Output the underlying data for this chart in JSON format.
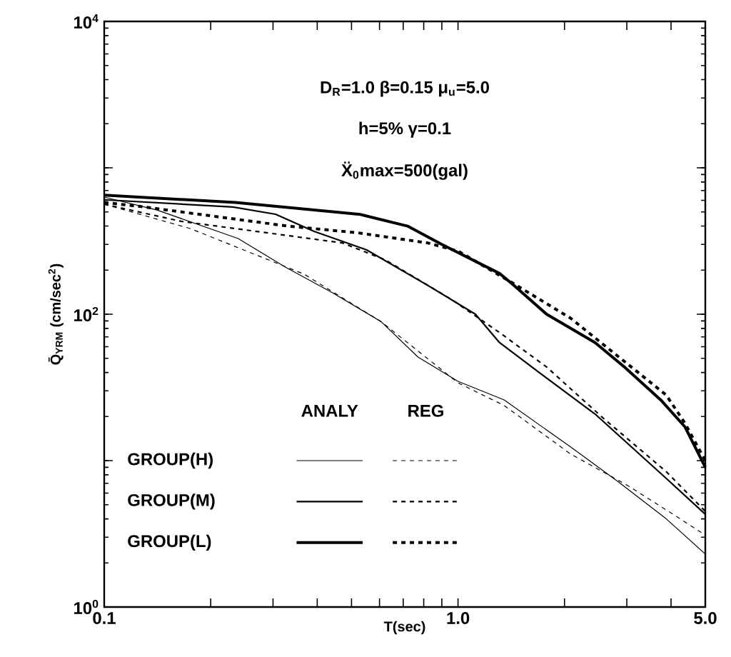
{
  "chart_data": {
    "type": "line",
    "log": "xy",
    "legend": "bottom left",
    "xlabel": "T(sec)",
    "ylabel": "Q̄$_{YRM}$ (cm/sec$^{2}$)",
    "annotations": [
      "D$_{R}$=1.0  β=0.15  μ$_{u}$=5.0",
      "h=5%  γ=0.1",
      "Ẍ$_{0}$max=500(gal)",
      "ANALY",
      "REG"
    ],
    "xlim": [
      0.1,
      5.0
    ],
    "ylim": [
      1,
      10000
    ],
    "xticks": [
      {
        "value": 0.1,
        "label": "0.1"
      },
      {
        "value": 0.2,
        "label": null
      },
      {
        "value": 0.3,
        "label": null
      },
      {
        "value": 0.4,
        "label": null
      },
      {
        "value": 0.5,
        "label": null
      },
      {
        "value": 0.6,
        "label": null
      },
      {
        "value": 0.7,
        "label": null
      },
      {
        "value": 0.8,
        "label": null
      },
      {
        "value": 0.9,
        "label": null
      },
      {
        "value": 1,
        "label": "1.0"
      },
      {
        "value": 2,
        "label": null
      },
      {
        "value": 3,
        "label": null
      },
      {
        "value": 4,
        "label": null
      },
      {
        "value": 5,
        "label": "5.0"
      }
    ],
    "yticks": [
      {
        "value": 1,
        "label": "10$^{0}$"
      },
      {
        "value": 10,
        "label": null
      },
      {
        "value": 100,
        "label": "10$^{2}$"
      },
      {
        "value": 1000,
        "label": null
      },
      {
        "value": 10000,
        "label": "10$^{4}$"
      }
    ],
    "series": [
      {
        "name": "GROUP(H)",
        "color": "#000000",
        "line_style": "solid",
        "x": [
          0.1,
          0.141,
          0.239,
          0.325,
          0.442,
          0.606,
          0.771,
          1.0,
          1.35,
          2.08,
          2.83,
          3.88,
          5.0
        ],
        "values": [
          631,
          515,
          329,
          210,
          140,
          89,
          51,
          34.8,
          26,
          12.4,
          7.2,
          4.0,
          2.3
        ]
      },
      {
        "color": "#000000",
        "line_style": "dashed",
        "x": [
          0.1,
          0.175,
          0.367,
          0.606,
          1.0,
          1.35,
          2.08,
          3.02,
          3.88,
          5.0
        ],
        "values": [
          564,
          385,
          188,
          89,
          34,
          23.8,
          11.1,
          6.75,
          4.6,
          3.1
        ]
      },
      {
        "name": "GROUP(M)",
        "color": "#000000",
        "line_style": "solid",
        "x": [
          0.1,
          0.231,
          0.305,
          0.392,
          0.552,
          0.823,
          1.12,
          1.31,
          1.68,
          2.44,
          3.88,
          5.0
        ],
        "values": [
          605,
          540,
          482,
          368,
          275,
          157,
          100,
          64,
          40.7,
          20.8,
          7.55,
          4.3
        ]
      },
      {
        "color": "#000000",
        "line_style": "dashed",
        "x": [
          0.1,
          0.165,
          0.471,
          0.623,
          0.964,
          1.31,
          1.78,
          2.58,
          3.88,
          5.0
        ],
        "values": [
          564,
          431,
          307,
          235,
          125,
          75,
          43.6,
          19.4,
          8.4,
          4.5
        ]
      },
      {
        "name": "GROUP(L)",
        "color": "#000000",
        "line_style": "solid",
        "x": [
          0.1,
          0.235,
          0.53,
          0.72,
          0.9,
          1.31,
          1.44,
          1.78,
          2.44,
          2.94,
          3.74,
          4.38,
          5.0
        ],
        "values": [
          650,
          580,
          480,
          400,
          300,
          190,
          157,
          100,
          64,
          44,
          26,
          17,
          9
        ]
      },
      {
        "color": "#000000",
        "line_style": "dashed",
        "x": [
          0.1,
          0.13,
          0.33,
          0.52,
          0.82,
          1.0,
          1.4,
          2.08,
          2.94,
          3.88,
          4.38,
          5.0
        ],
        "values": [
          580,
          540,
          400,
          360,
          307,
          270,
          168,
          94,
          48,
          28,
          18,
          10
        ]
      }
    ]
  }
}
